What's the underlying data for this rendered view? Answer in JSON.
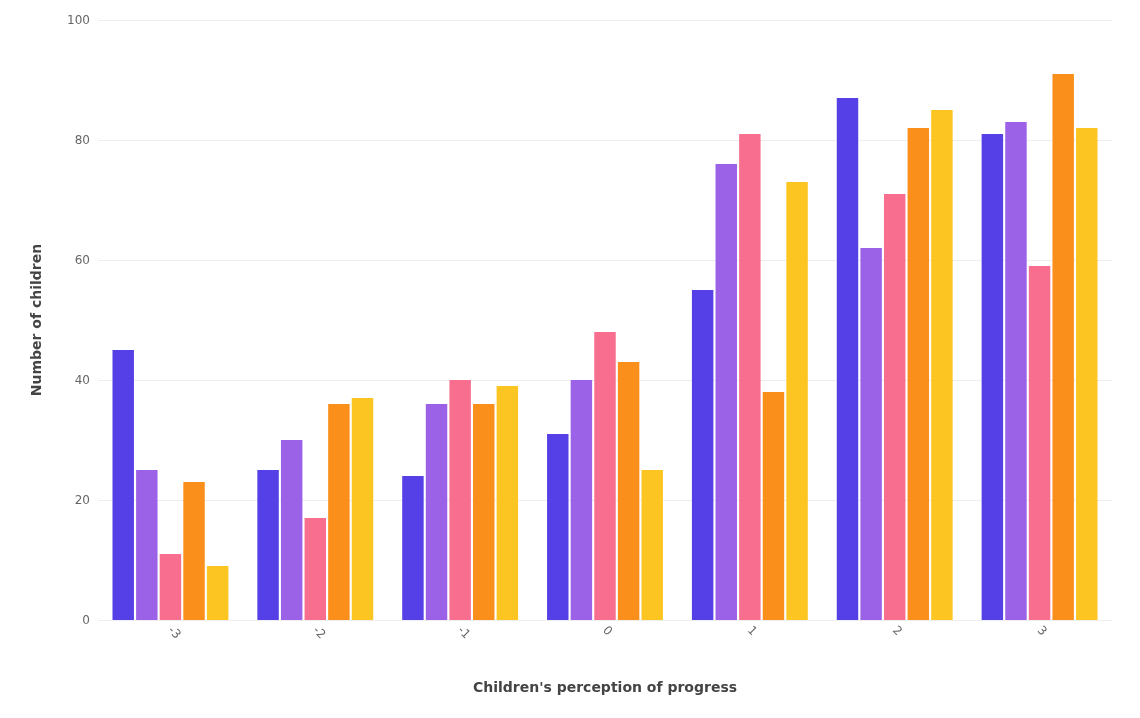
{
  "chart_data": {
    "type": "bar",
    "xlabel": "Children's perception of progress",
    "ylabel": "Number of children",
    "categories": [
      "-3",
      "-2",
      "-1",
      "0",
      "1",
      "2",
      "3"
    ],
    "series": [
      {
        "color": "#5440e6",
        "values": [
          45,
          25,
          24,
          31,
          55,
          87,
          81
        ]
      },
      {
        "color": "#9b62e8",
        "values": [
          25,
          30,
          36,
          40,
          76,
          62,
          83
        ]
      },
      {
        "color": "#f76e8e",
        "values": [
          11,
          17,
          40,
          48,
          81,
          71,
          59
        ]
      },
      {
        "color": "#fb8f1c",
        "values": [
          23,
          36,
          36,
          43,
          38,
          82,
          91
        ]
      },
      {
        "color": "#fdc521",
        "values": [
          9,
          37,
          39,
          25,
          73,
          85,
          82
        ]
      }
    ],
    "ylim": [
      0,
      100
    ],
    "yticks": [
      0,
      20,
      40,
      60,
      80,
      100
    ],
    "grid": "y"
  }
}
